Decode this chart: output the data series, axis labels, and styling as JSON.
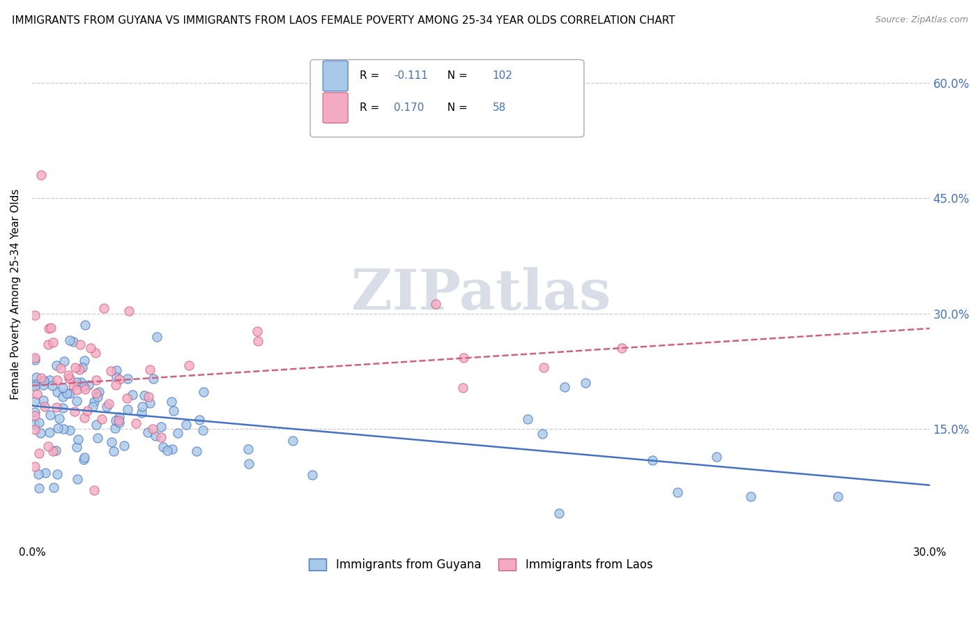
{
  "title": "IMMIGRANTS FROM GUYANA VS IMMIGRANTS FROM LAOS FEMALE POVERTY AMONG 25-34 YEAR OLDS CORRELATION CHART",
  "source": "Source: ZipAtlas.com",
  "ylabel": "Female Poverty Among 25-34 Year Olds",
  "ytick_vals": [
    0.15,
    0.3,
    0.45,
    0.6
  ],
  "ytick_labels": [
    "15.0%",
    "30.0%",
    "45.0%",
    "60.0%"
  ],
  "xlim": [
    0.0,
    0.3
  ],
  "ylim": [
    0.0,
    0.65
  ],
  "legend_label1": "Immigrants from Guyana",
  "legend_label2": "Immigrants from Laos",
  "R_guyana": -0.111,
  "N_guyana": 102,
  "R_laos": 0.17,
  "N_laos": 58,
  "color_guyana": "#a8c8e8",
  "color_laos": "#f4aac0",
  "line_color_guyana": "#4472c4",
  "line_color_laos": "#d06080",
  "text_color_blue": "#4472c4",
  "watermark_color": "#d8dde8",
  "grid_color": "#c8ccd8",
  "seed": 1234
}
